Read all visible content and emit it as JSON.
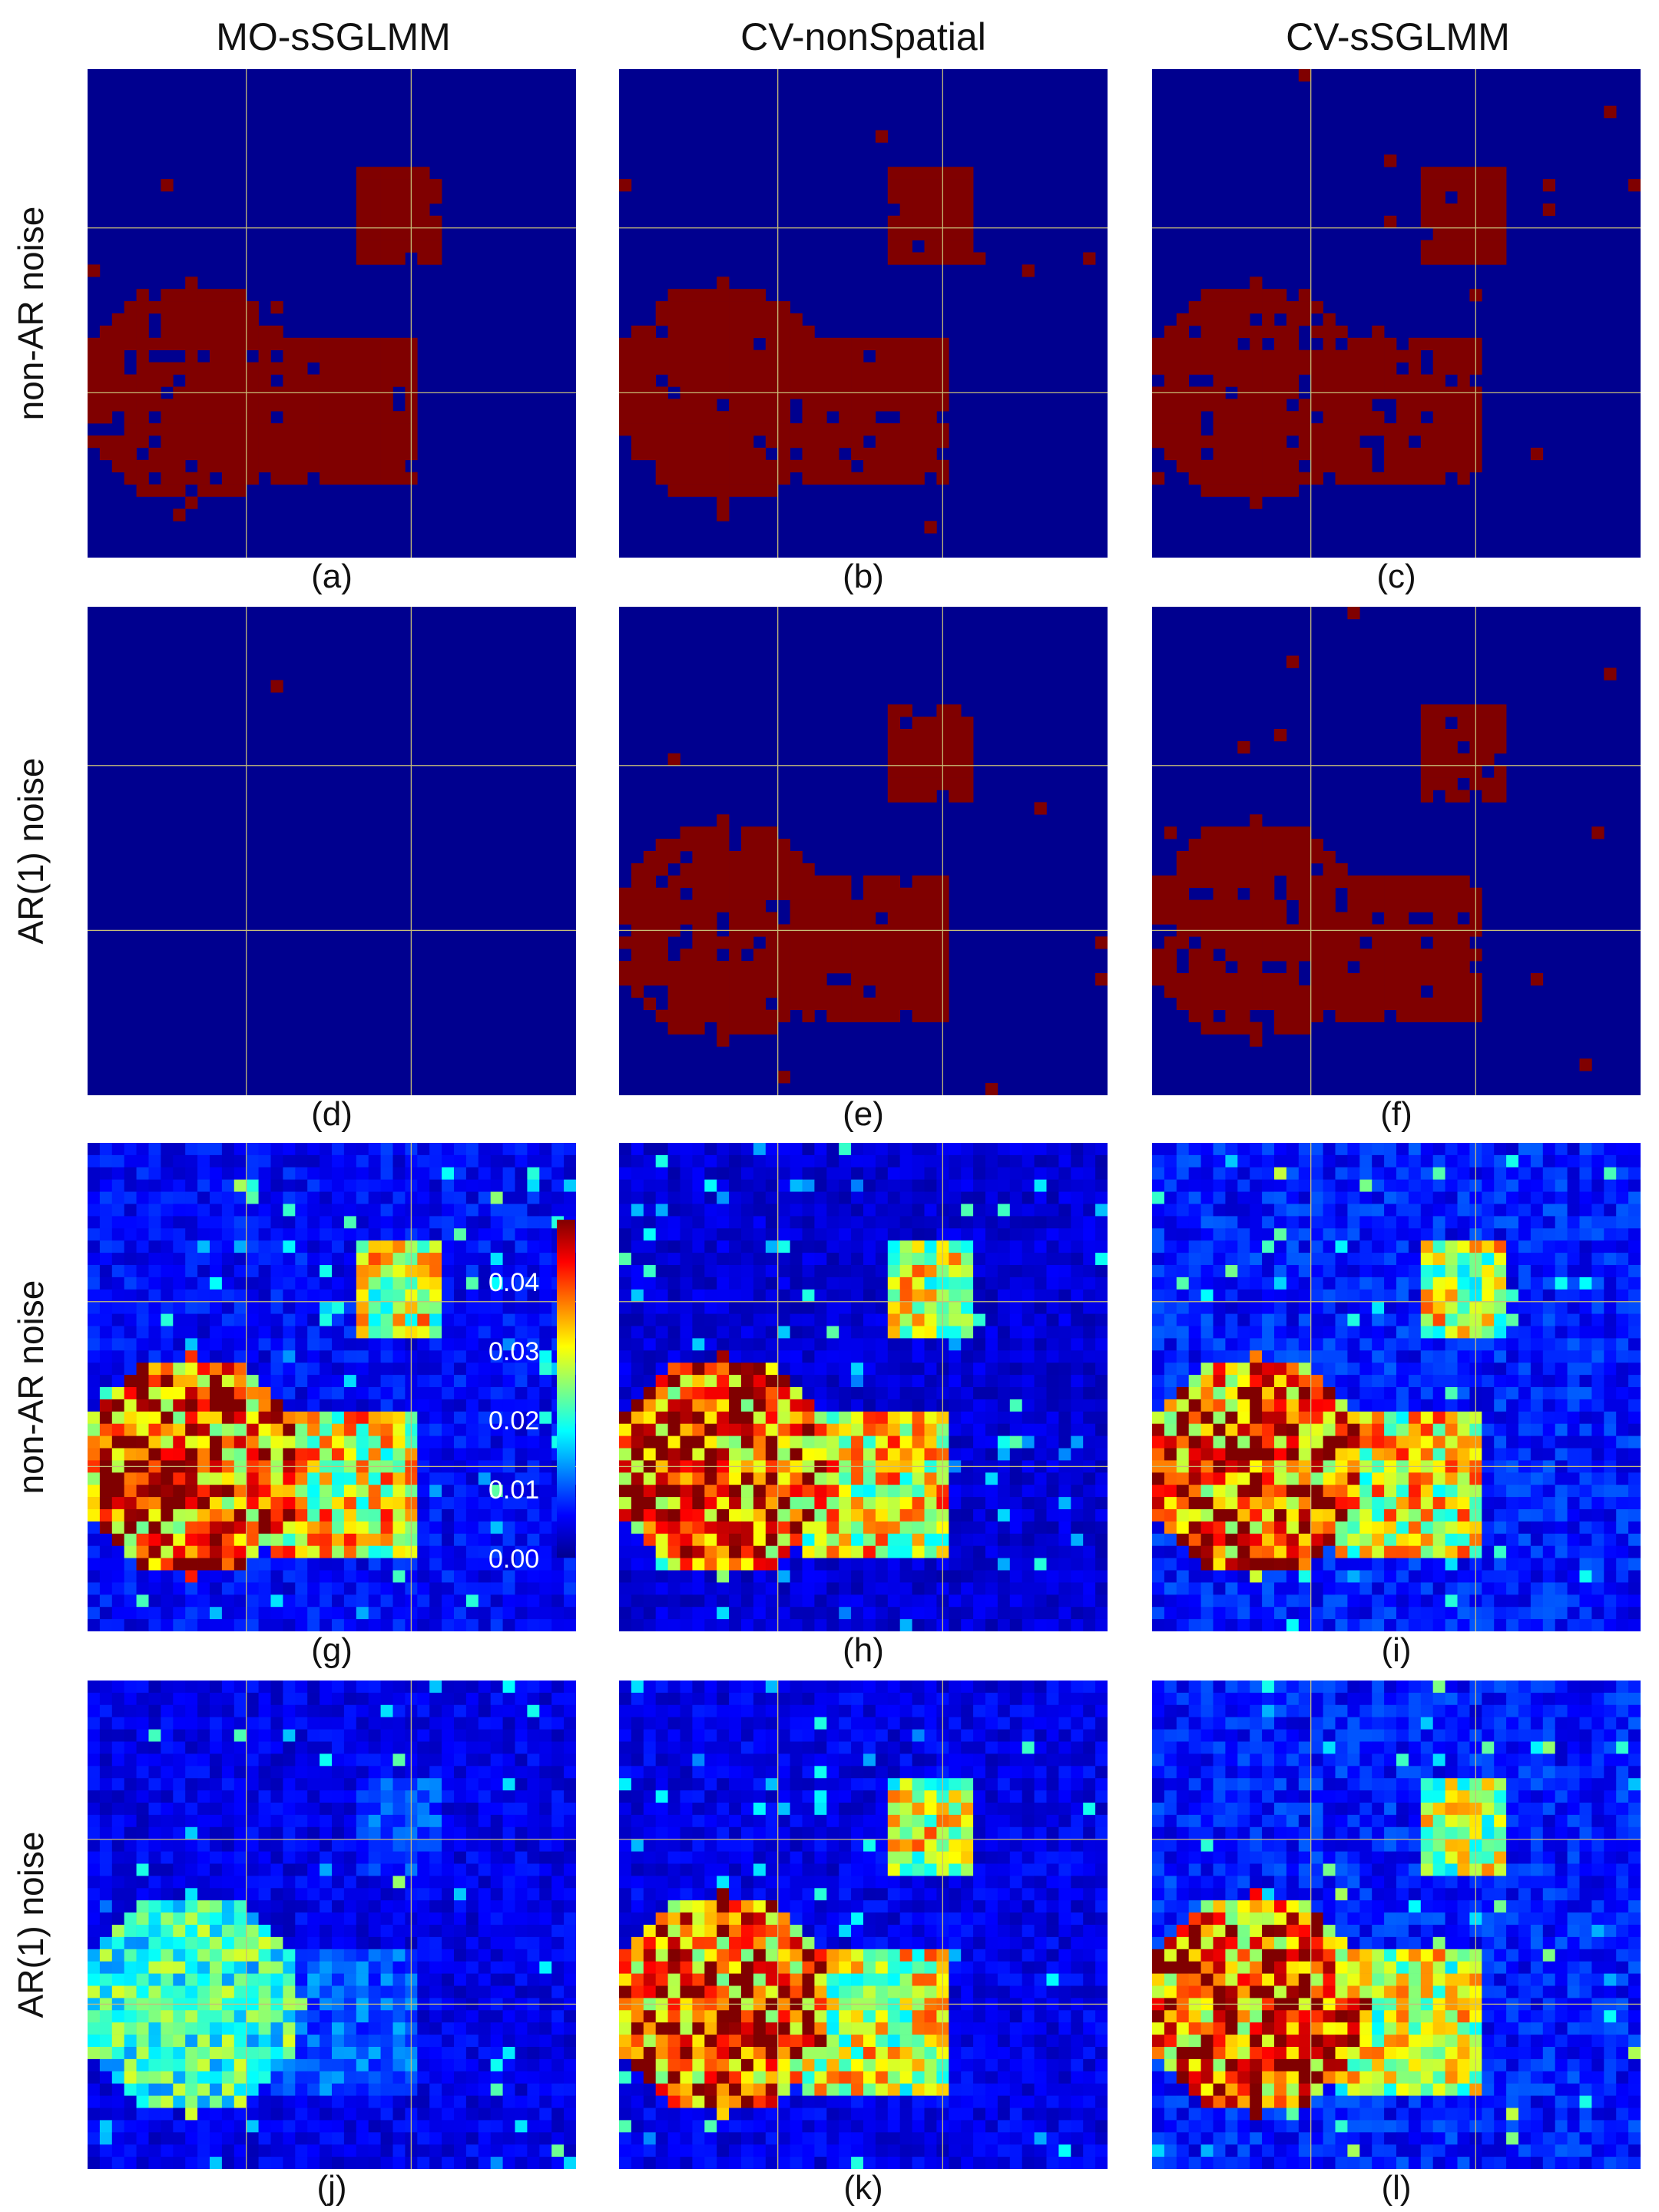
{
  "columns": [
    "MO-sSGLMM",
    "CV-nonSpatial",
    "CV-sSGLMM"
  ],
  "rows": [
    "non-AR noise",
    "AR(1) noise",
    "non-AR noise",
    "AR(1) noise"
  ],
  "panel_labels": [
    "(a)",
    "(b)",
    "(c)",
    "(d)",
    "(e)",
    "(f)",
    "(g)",
    "(h)",
    "(i)",
    "(j)",
    "(k)",
    "(l)"
  ],
  "colors": {
    "binary_background": "#00008F",
    "binary_active": "#800000",
    "guide_line": "#C8BE78"
  },
  "colorbar": {
    "colormap": "jet",
    "range": [
      0,
      0.048
    ],
    "tick_labels": [
      "0.04",
      "0.03",
      "0.02",
      "0.01",
      "0.00"
    ],
    "tick_values": [
      0.04,
      0.03,
      0.02,
      0.01,
      0.0
    ]
  },
  "chart_data": {
    "type": "heatmap",
    "grid_size": [
      40,
      40
    ],
    "guide_lines_cell": [
      13,
      26.5
    ],
    "true_regions": [
      {
        "shape": "circle",
        "center_cell": [
          8.5,
          26.5
        ],
        "radius_cells": 9
      },
      {
        "shape": "square",
        "x_range_cells": [
          15,
          27
        ],
        "y_range_cells": [
          22,
          34
        ]
      },
      {
        "shape": "square",
        "x_range_cells": [
          22,
          29
        ],
        "y_range_cells": [
          8.5,
          15.5
        ]
      }
    ],
    "panels": [
      {
        "id": "a",
        "kind": "binary",
        "detect": [
          1,
          1,
          1
        ],
        "false_positive_rate": 0.005
      },
      {
        "id": "b",
        "kind": "binary",
        "detect": [
          1,
          1,
          1
        ],
        "false_positive_rate": 0.006
      },
      {
        "id": "c",
        "kind": "binary",
        "detect": [
          1,
          1,
          1
        ],
        "false_positive_rate": 0.008
      },
      {
        "id": "d",
        "kind": "binary",
        "detect": [
          0,
          0,
          0
        ],
        "false_positive_rate": 0.0006
      },
      {
        "id": "e",
        "kind": "binary",
        "detect": [
          1,
          1,
          1
        ],
        "false_positive_rate": 0.006
      },
      {
        "id": "f",
        "kind": "binary",
        "detect": [
          1,
          1,
          1
        ],
        "false_positive_rate": 0.008
      },
      {
        "id": "g",
        "kind": "continuous",
        "region_mean": [
          0.042,
          0.032,
          0.03
        ],
        "background": 0.006
      },
      {
        "id": "h",
        "kind": "continuous",
        "region_mean": [
          0.042,
          0.032,
          0.03
        ],
        "background": 0.004
      },
      {
        "id": "i",
        "kind": "continuous",
        "region_mean": [
          0.042,
          0.032,
          0.03
        ],
        "background": 0.007
      },
      {
        "id": "j",
        "kind": "continuous",
        "region_mean": [
          0.022,
          0.011,
          0.01
        ],
        "background": 0.005
      },
      {
        "id": "k",
        "kind": "continuous",
        "region_mean": [
          0.042,
          0.03,
          0.03
        ],
        "background": 0.005
      },
      {
        "id": "l",
        "kind": "continuous",
        "region_mean": [
          0.042,
          0.03,
          0.028
        ],
        "background": 0.007
      }
    ]
  }
}
